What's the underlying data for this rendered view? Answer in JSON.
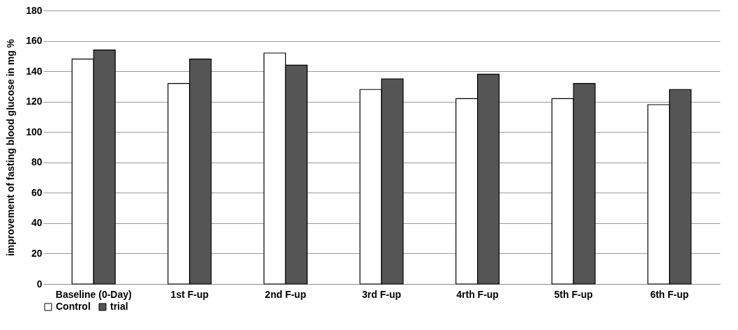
{
  "chart_data": {
    "type": "bar",
    "ylabel": "improvement  of fasting blood glucose in mg %",
    "categories": [
      "Baseline (0-Day)",
      "1st F-up",
      "2nd F-up",
      "3rd F-up",
      "4rth F-up",
      "5th F-up",
      "6th F-up"
    ],
    "series": [
      {
        "name": "Control",
        "color": "#ffffff",
        "values": [
          148,
          132,
          152,
          128,
          122,
          122,
          118
        ]
      },
      {
        "name": "trial",
        "color": "#555555",
        "values": [
          154,
          148,
          144,
          135,
          138,
          132,
          128
        ]
      }
    ],
    "ylim": [
      0,
      180
    ],
    "yticks": [
      0,
      20,
      40,
      60,
      80,
      100,
      120,
      140,
      160,
      180
    ],
    "grid": "y",
    "legend": "bottom"
  }
}
